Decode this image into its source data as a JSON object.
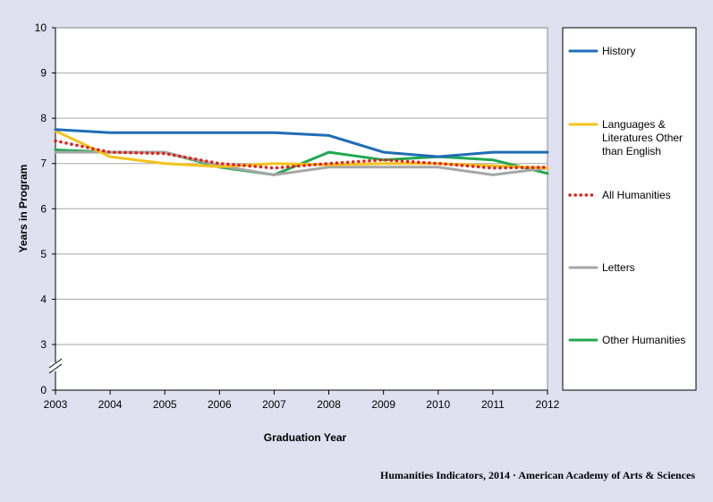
{
  "chart_data": {
    "type": "line",
    "title": "",
    "xlabel": "Graduation Year",
    "ylabel": "Years in Program",
    "x": [
      "2003",
      "2004",
      "2005",
      "2006",
      "2007",
      "2008",
      "2009",
      "2010",
      "2011",
      "2012"
    ],
    "y_ticks": [
      "0",
      "3",
      "4",
      "5",
      "6",
      "7",
      "8",
      "9",
      "10"
    ],
    "ylim": [
      0,
      10
    ],
    "y_axis_break": true,
    "grid": "horizontal",
    "legend_position": "right",
    "series": [
      {
        "name": "History",
        "color": "#1f6db5",
        "style": "solid",
        "values": [
          7.75,
          7.68,
          7.68,
          7.68,
          7.68,
          7.62,
          7.25,
          7.15,
          7.25,
          7.25
        ]
      },
      {
        "name": "Languages & Literatures Other than English",
        "color": "#f6c21a",
        "style": "solid",
        "values": [
          7.72,
          7.15,
          7.0,
          6.93,
          7.0,
          6.97,
          7.0,
          7.0,
          6.95,
          6.9
        ]
      },
      {
        "name": "All Humanities",
        "color": "#e0201b",
        "style": "dotted",
        "values": [
          7.5,
          7.25,
          7.22,
          7.0,
          6.9,
          7.0,
          7.08,
          7.0,
          6.9,
          6.92
        ]
      },
      {
        "name": "Letters",
        "color": "#a6a6a6",
        "style": "solid",
        "values": [
          7.25,
          7.25,
          7.25,
          6.95,
          6.75,
          6.92,
          6.92,
          6.92,
          6.75,
          6.9
        ]
      },
      {
        "name": "Other Humanities",
        "color": "#1fa84f",
        "style": "solid",
        "values": [
          7.3,
          7.25,
          7.25,
          6.92,
          6.75,
          7.25,
          7.08,
          7.15,
          7.08,
          6.78
        ]
      }
    ],
    "legend_lines": [
      [
        "History"
      ],
      [
        "Languages &",
        "Literatures Other",
        "than English"
      ],
      [
        "All Humanities"
      ],
      [
        "Letters"
      ],
      [
        "Other Humanities"
      ]
    ]
  },
  "source": "Humanities Indicators, 2014 · American Academy of Arts & Sciences"
}
